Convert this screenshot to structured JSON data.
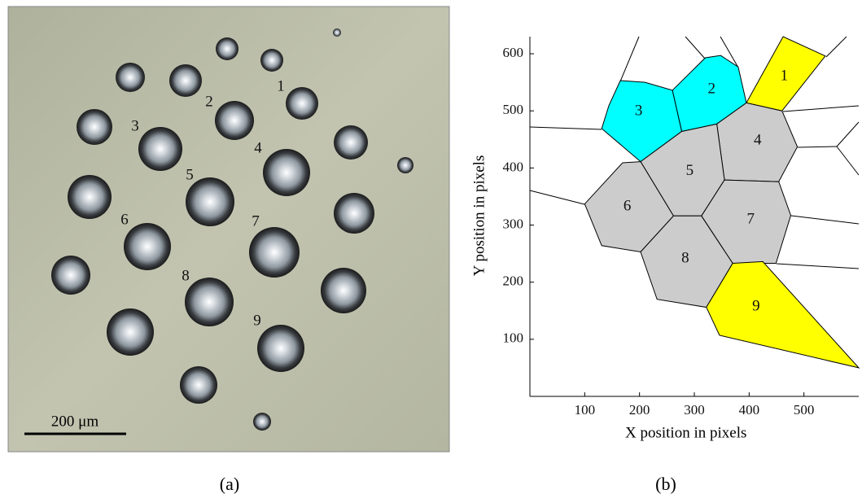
{
  "panel_a": {
    "labels": [
      "1",
      "2",
      "3",
      "4",
      "5",
      "6",
      "7",
      "8",
      "9"
    ],
    "scale_bar": "200 μm",
    "caption": "(a)"
  },
  "panel_b": {
    "caption": "(b)",
    "x_label": "X position in pixels",
    "y_label": "Y position in pixels",
    "xlim": [
      0,
      600
    ],
    "ylim": [
      0,
      630
    ],
    "xticks": [
      100,
      200,
      300,
      400,
      500
    ],
    "yticks": [
      100,
      200,
      300,
      400,
      500,
      600
    ],
    "cells": [
      {
        "label": "1",
        "color": "#ffff00",
        "vertices": [
          [
            395,
            514
          ],
          [
            462,
            630
          ],
          [
            539,
            596
          ],
          [
            460,
            500
          ]
        ]
      },
      {
        "label": "2",
        "color": "#00ffff",
        "vertices": [
          [
            260,
            536
          ],
          [
            320,
            593
          ],
          [
            348,
            597
          ],
          [
            380,
            577
          ],
          [
            395,
            514
          ],
          [
            341,
            477
          ],
          [
            277,
            464
          ]
        ]
      },
      {
        "label": "3",
        "color": "#00ffff",
        "vertices": [
          [
            165,
            553
          ],
          [
            210,
            550
          ],
          [
            260,
            536
          ],
          [
            277,
            464
          ],
          [
            202,
            411
          ],
          [
            131,
            469
          ],
          [
            144,
            509
          ]
        ]
      },
      {
        "label": "4",
        "color": "#cccccc",
        "vertices": [
          [
            341,
            477
          ],
          [
            395,
            514
          ],
          [
            460,
            500
          ],
          [
            488,
            437
          ],
          [
            454,
            376
          ],
          [
            355,
            379
          ]
        ]
      },
      {
        "label": "5",
        "color": "#cccccc",
        "vertices": [
          [
            277,
            464
          ],
          [
            341,
            477
          ],
          [
            355,
            379
          ],
          [
            313,
            316
          ],
          [
            262,
            316
          ],
          [
            202,
            411
          ]
        ]
      },
      {
        "label": "6",
        "color": "#cccccc",
        "vertices": [
          [
            169,
            409
          ],
          [
            202,
            411
          ],
          [
            262,
            316
          ],
          [
            202,
            253
          ],
          [
            131,
            264
          ],
          [
            100,
            337
          ]
        ]
      },
      {
        "label": "7",
        "color": "#cccccc",
        "vertices": [
          [
            355,
            379
          ],
          [
            454,
            376
          ],
          [
            476,
            317
          ],
          [
            449,
            233
          ],
          [
            370,
            233
          ],
          [
            313,
            316
          ]
        ]
      },
      {
        "label": "8",
        "color": "#cccccc",
        "vertices": [
          [
            262,
            316
          ],
          [
            313,
            316
          ],
          [
            370,
            233
          ],
          [
            322,
            156
          ],
          [
            232,
            170
          ],
          [
            202,
            253
          ]
        ]
      },
      {
        "label": "9",
        "color": "#ffff00",
        "vertices": [
          [
            370,
            233
          ],
          [
            425,
            236
          ],
          [
            600,
            50
          ],
          [
            346,
            107
          ],
          [
            322,
            156
          ]
        ]
      }
    ]
  }
}
